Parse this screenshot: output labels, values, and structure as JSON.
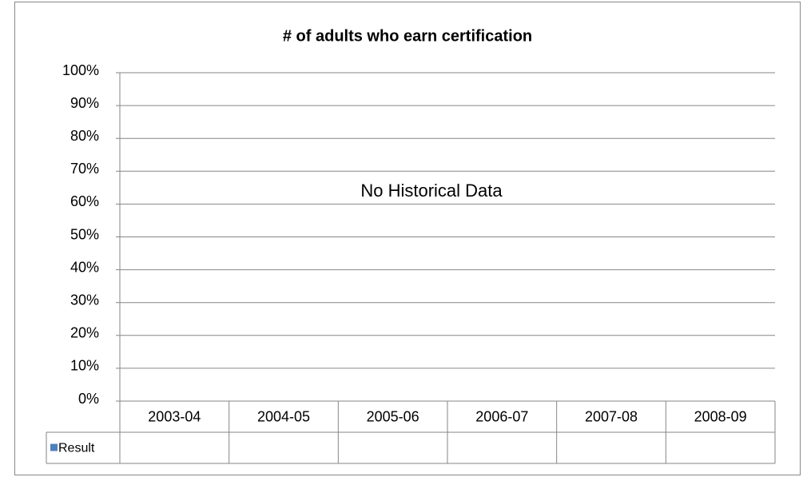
{
  "chart_data": {
    "type": "bar",
    "title": "# of adults who earn certification",
    "annotation": "No Historical Data",
    "categories": [
      "2003-04",
      "2004-05",
      "2005-06",
      "2006-07",
      "2007-08",
      "2008-09"
    ],
    "series": [
      {
        "name": "Result",
        "color": "#4f81bd",
        "values": [
          null,
          null,
          null,
          null,
          null,
          null
        ]
      }
    ],
    "ylim": [
      0,
      100
    ],
    "yticks": [
      {
        "value": 0,
        "label": "0%"
      },
      {
        "value": 10,
        "label": "10%"
      },
      {
        "value": 20,
        "label": "20%"
      },
      {
        "value": 30,
        "label": "30%"
      },
      {
        "value": 40,
        "label": "40%"
      },
      {
        "value": 50,
        "label": "50%"
      },
      {
        "value": 60,
        "label": "60%"
      },
      {
        "value": 70,
        "label": "70%"
      },
      {
        "value": 80,
        "label": "80%"
      },
      {
        "value": 90,
        "label": "90%"
      },
      {
        "value": 100,
        "label": "100%"
      }
    ],
    "grid": true
  }
}
